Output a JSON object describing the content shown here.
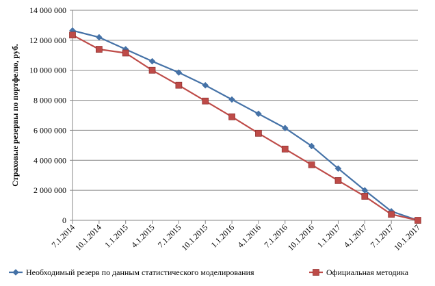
{
  "chart_data": {
    "type": "line",
    "title": "",
    "xlabel": "",
    "ylabel": "Страховые резервы по портфелю, руб.",
    "ylim": [
      0,
      14000000
    ],
    "y_ticks": [
      "0",
      "2 000 000",
      "4 000 000",
      "6 000 000",
      "8 000 000",
      "10 000 000",
      "12 000 000",
      "14 000 000"
    ],
    "y_tick_values": [
      0,
      2000000,
      4000000,
      6000000,
      8000000,
      10000000,
      12000000,
      14000000
    ],
    "categories": [
      "7.1.2014",
      "10.1.2014",
      "1.1.2015",
      "4.1.2015",
      "7.1.2015",
      "10.1.2015",
      "1.1.2016",
      "4.1.2016",
      "7.1.2016",
      "10.1.2016",
      "1.1.2017",
      "4.1.2017",
      "7.1.2017",
      "10.1.2017"
    ],
    "grid": "horizontal",
    "legend_position": "bottom",
    "series": [
      {
        "name": "Необходимый резерв по данным статистического моделирования",
        "color": "#4572A7",
        "marker": "diamond",
        "values": [
          12650000,
          12200000,
          11400000,
          10600000,
          9850000,
          9000000,
          8050000,
          7100000,
          6150000,
          4950000,
          3450000,
          2000000,
          600000,
          0
        ]
      },
      {
        "name": "Официальная методика",
        "color": "#BE4B48",
        "marker": "square",
        "values": [
          12350000,
          11400000,
          11150000,
          10000000,
          9000000,
          7950000,
          6900000,
          5800000,
          4750000,
          3700000,
          2650000,
          1600000,
          400000,
          0
        ]
      }
    ]
  }
}
